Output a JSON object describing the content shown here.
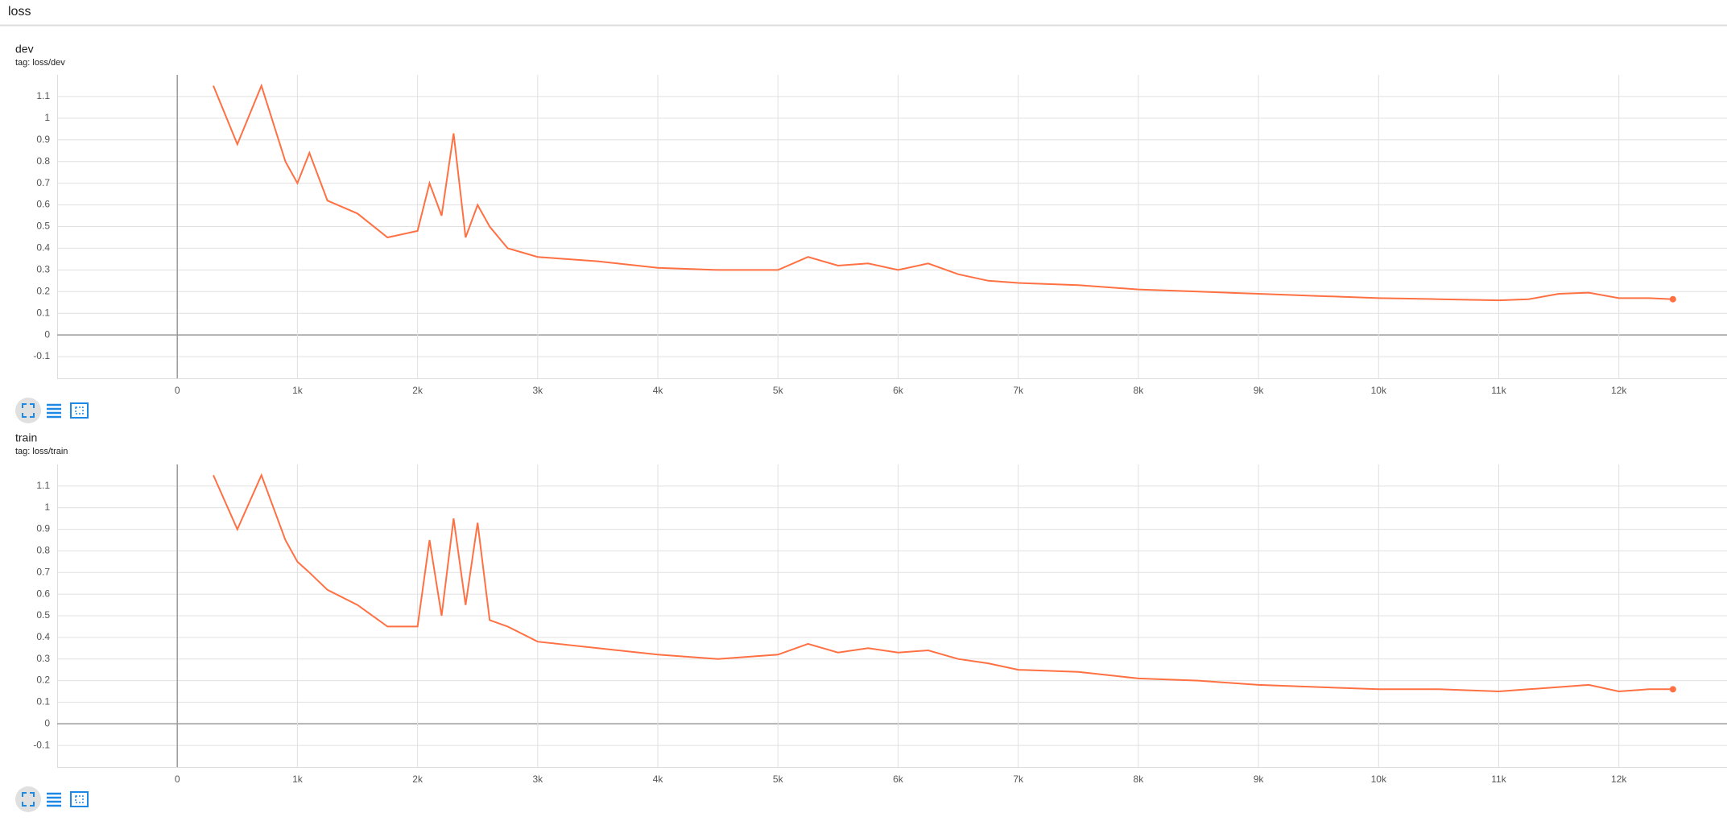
{
  "header": {
    "title": "loss"
  },
  "chart_data": [
    {
      "type": "line",
      "title": "dev",
      "subtitle": "tag: loss/dev",
      "x": [
        300,
        500,
        700,
        900,
        1000,
        1100,
        1250,
        1500,
        1750,
        2000,
        2100,
        2200,
        2300,
        2400,
        2500,
        2600,
        2750,
        3000,
        3500,
        4000,
        4500,
        5000,
        5250,
        5500,
        5750,
        6000,
        6250,
        6500,
        6750,
        7000,
        7500,
        8000,
        8500,
        9000,
        9500,
        10000,
        10500,
        11000,
        11250,
        11500,
        11750,
        12000,
        12250,
        12450
      ],
      "series": [
        {
          "color": "#ff7043",
          "values": [
            1.15,
            0.88,
            1.15,
            0.8,
            0.7,
            0.84,
            0.62,
            0.56,
            0.45,
            0.48,
            0.7,
            0.55,
            0.93,
            0.45,
            0.6,
            0.5,
            0.4,
            0.36,
            0.34,
            0.31,
            0.3,
            0.3,
            0.36,
            0.32,
            0.33,
            0.3,
            0.33,
            0.28,
            0.25,
            0.24,
            0.23,
            0.21,
            0.2,
            0.19,
            0.18,
            0.17,
            0.165,
            0.16,
            0.165,
            0.19,
            0.195,
            0.17,
            0.17,
            0.165
          ]
        }
      ],
      "xlim": [
        -1000,
        12900
      ],
      "ylim": [
        -0.2,
        1.2
      ],
      "xticks": [
        0,
        {
          "value": 1000,
          "label": "1k"
        },
        {
          "value": 2000,
          "label": "2k"
        },
        {
          "value": 3000,
          "label": "3k"
        },
        {
          "value": 4000,
          "label": "4k"
        },
        {
          "value": 5000,
          "label": "5k"
        },
        {
          "value": 6000,
          "label": "6k"
        },
        {
          "value": 7000,
          "label": "7k"
        },
        {
          "value": 8000,
          "label": "8k"
        },
        {
          "value": 9000,
          "label": "9k"
        },
        {
          "value": 10000,
          "label": "10k"
        },
        {
          "value": 11000,
          "label": "11k"
        },
        {
          "value": 12000,
          "label": "12k"
        }
      ],
      "yticks": [
        -0.1,
        0,
        0.1,
        0.2,
        0.3,
        0.4,
        0.5,
        0.6,
        0.7,
        0.8,
        0.9,
        1,
        1.1
      ],
      "grid": true
    },
    {
      "type": "line",
      "title": "train",
      "subtitle": "tag: loss/train",
      "x": [
        300,
        500,
        700,
        900,
        1000,
        1100,
        1250,
        1500,
        1750,
        2000,
        2100,
        2200,
        2300,
        2400,
        2500,
        2600,
        2750,
        3000,
        3500,
        4000,
        4500,
        5000,
        5250,
        5500,
        5750,
        6000,
        6250,
        6500,
        6750,
        7000,
        7500,
        8000,
        8500,
        9000,
        9500,
        10000,
        10500,
        11000,
        11250,
        11500,
        11750,
        12000,
        12250,
        12450
      ],
      "series": [
        {
          "color": "#ff7043",
          "values": [
            1.15,
            0.9,
            1.15,
            0.85,
            0.75,
            0.7,
            0.62,
            0.55,
            0.45,
            0.45,
            0.85,
            0.5,
            0.95,
            0.55,
            0.93,
            0.48,
            0.45,
            0.38,
            0.35,
            0.32,
            0.3,
            0.32,
            0.37,
            0.33,
            0.35,
            0.33,
            0.34,
            0.3,
            0.28,
            0.25,
            0.24,
            0.21,
            0.2,
            0.18,
            0.17,
            0.16,
            0.16,
            0.15,
            0.16,
            0.17,
            0.18,
            0.15,
            0.16,
            0.16
          ]
        }
      ],
      "xlim": [
        -1000,
        12900
      ],
      "ylim": [
        -0.2,
        1.2
      ],
      "xticks": [
        0,
        {
          "value": 1000,
          "label": "1k"
        },
        {
          "value": 2000,
          "label": "2k"
        },
        {
          "value": 3000,
          "label": "3k"
        },
        {
          "value": 4000,
          "label": "4k"
        },
        {
          "value": 5000,
          "label": "5k"
        },
        {
          "value": 6000,
          "label": "6k"
        },
        {
          "value": 7000,
          "label": "7k"
        },
        {
          "value": 8000,
          "label": "8k"
        },
        {
          "value": 9000,
          "label": "9k"
        },
        {
          "value": 10000,
          "label": "10k"
        },
        {
          "value": 11000,
          "label": "11k"
        },
        {
          "value": 12000,
          "label": "12k"
        }
      ],
      "yticks": [
        -0.1,
        0,
        0.1,
        0.2,
        0.3,
        0.4,
        0.5,
        0.6,
        0.7,
        0.8,
        0.9,
        1,
        1.1
      ],
      "grid": true
    }
  ]
}
